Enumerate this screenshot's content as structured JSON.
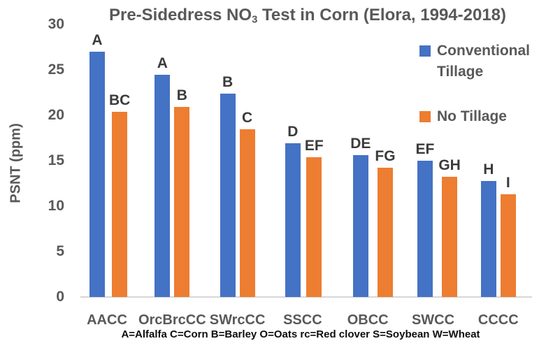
{
  "title": {
    "prefix": "Pre-Sidedress NO",
    "subscript": "3",
    "suffix": " Test in Corn (Elora, 1994-2018)"
  },
  "y_axis_title": "PSNT (ppm)",
  "footnote": "A=Alfalfa C=Corn B=Barley O=Oats rc=Red clover S=Soybean W=Wheat",
  "legend": {
    "items": [
      {
        "label": "Conventional Tillage",
        "color": "#4472C4"
      },
      {
        "label": "No Tillage",
        "color": "#ED7D31"
      }
    ]
  },
  "chart_data": {
    "type": "bar",
    "title": "Pre-Sidedress NO3 Test in Corn (Elora, 1994-2018)",
    "xlabel": "",
    "ylabel": "PSNT (ppm)",
    "ylim": [
      0,
      30
    ],
    "yticks": [
      0,
      5,
      10,
      15,
      20,
      25,
      30
    ],
    "grid": false,
    "legend_position": "right",
    "categories": [
      "AACC",
      "OrcBrcCC",
      "SWrcCC",
      "SSCC",
      "OBCC",
      "SWCC",
      "CCCC"
    ],
    "series": [
      {
        "name": "Conventional Tillage",
        "color": "#4472C4",
        "values": [
          27.0,
          24.5,
          22.4,
          16.9,
          15.6,
          15.0,
          12.8
        ],
        "significance_labels": [
          "A",
          "A",
          "B",
          "D",
          "DE",
          "EF",
          "H"
        ]
      },
      {
        "name": "No Tillage",
        "color": "#ED7D31",
        "values": [
          20.4,
          20.9,
          18.5,
          15.4,
          14.2,
          13.2,
          11.3
        ],
        "significance_labels": [
          "BC",
          "B",
          "C",
          "EF",
          "FG",
          "GH",
          "I"
        ]
      }
    ]
  }
}
